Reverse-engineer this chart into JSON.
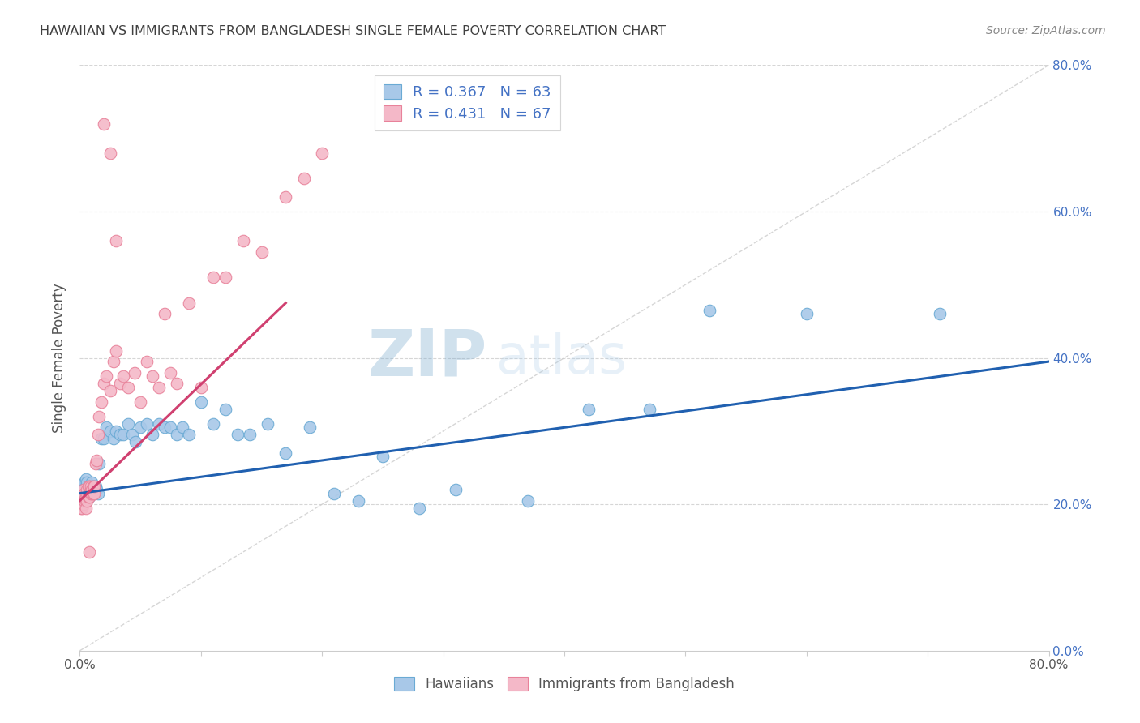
{
  "title": "HAWAIIAN VS IMMIGRANTS FROM BANGLADESH SINGLE FEMALE POVERTY CORRELATION CHART",
  "source": "Source: ZipAtlas.com",
  "ylabel": "Single Female Poverty",
  "legend_label1": "Hawaiians",
  "legend_label2": "Immigrants from Bangladesh",
  "r1": 0.367,
  "n1": 63,
  "r2": 0.431,
  "n2": 67,
  "watermark_zip": "ZIP",
  "watermark_atlas": "atlas",
  "blue_scatter_color": "#a8c8e8",
  "blue_scatter_edge": "#6aaad4",
  "pink_scatter_color": "#f4b8c8",
  "pink_scatter_edge": "#e8829a",
  "blue_line_color": "#2060b0",
  "pink_line_color": "#d04070",
  "axis_label_color": "#4472c4",
  "title_color": "#404040",
  "source_color": "#888888",
  "grid_color": "#cccccc",
  "diagonal_color": "#cccccc",
  "xlim": [
    0.0,
    0.8
  ],
  "ylim": [
    0.0,
    0.8
  ],
  "hawaiians_x": [
    0.002,
    0.003,
    0.004,
    0.004,
    0.005,
    0.005,
    0.005,
    0.006,
    0.006,
    0.007,
    0.007,
    0.008,
    0.008,
    0.009,
    0.009,
    0.01,
    0.01,
    0.011,
    0.011,
    0.012,
    0.013,
    0.014,
    0.015,
    0.016,
    0.018,
    0.02,
    0.022,
    0.025,
    0.028,
    0.03,
    0.033,
    0.036,
    0.04,
    0.043,
    0.046,
    0.05,
    0.055,
    0.06,
    0.065,
    0.07,
    0.075,
    0.08,
    0.085,
    0.09,
    0.1,
    0.11,
    0.12,
    0.13,
    0.14,
    0.155,
    0.17,
    0.19,
    0.21,
    0.23,
    0.25,
    0.28,
    0.31,
    0.37,
    0.42,
    0.47,
    0.52,
    0.6,
    0.71
  ],
  "hawaiians_y": [
    0.225,
    0.22,
    0.215,
    0.23,
    0.21,
    0.225,
    0.235,
    0.22,
    0.23,
    0.215,
    0.225,
    0.21,
    0.22,
    0.215,
    0.225,
    0.22,
    0.23,
    0.215,
    0.225,
    0.22,
    0.225,
    0.22,
    0.215,
    0.255,
    0.29,
    0.29,
    0.305,
    0.3,
    0.29,
    0.3,
    0.295,
    0.295,
    0.31,
    0.295,
    0.285,
    0.305,
    0.31,
    0.295,
    0.31,
    0.305,
    0.305,
    0.295,
    0.305,
    0.295,
    0.34,
    0.31,
    0.33,
    0.295,
    0.295,
    0.31,
    0.27,
    0.305,
    0.215,
    0.205,
    0.265,
    0.195,
    0.22,
    0.205,
    0.33,
    0.33,
    0.465,
    0.46,
    0.46
  ],
  "bangladesh_x": [
    0.001,
    0.001,
    0.002,
    0.002,
    0.002,
    0.003,
    0.003,
    0.003,
    0.004,
    0.004,
    0.004,
    0.005,
    0.005,
    0.005,
    0.005,
    0.006,
    0.006,
    0.006,
    0.007,
    0.007,
    0.007,
    0.008,
    0.008,
    0.008,
    0.009,
    0.009,
    0.009,
    0.01,
    0.01,
    0.011,
    0.011,
    0.012,
    0.012,
    0.013,
    0.014,
    0.015,
    0.016,
    0.018,
    0.02,
    0.022,
    0.025,
    0.028,
    0.03,
    0.033,
    0.036,
    0.04,
    0.045,
    0.05,
    0.055,
    0.06,
    0.065,
    0.07,
    0.075,
    0.08,
    0.09,
    0.1,
    0.11,
    0.12,
    0.135,
    0.15,
    0.17,
    0.185,
    0.2,
    0.02,
    0.025,
    0.03,
    0.008
  ],
  "bangladesh_y": [
    0.2,
    0.195,
    0.205,
    0.215,
    0.195,
    0.21,
    0.2,
    0.22,
    0.215,
    0.205,
    0.215,
    0.205,
    0.195,
    0.21,
    0.215,
    0.215,
    0.22,
    0.205,
    0.215,
    0.21,
    0.225,
    0.215,
    0.225,
    0.21,
    0.22,
    0.215,
    0.225,
    0.215,
    0.22,
    0.215,
    0.225,
    0.215,
    0.225,
    0.255,
    0.26,
    0.295,
    0.32,
    0.34,
    0.365,
    0.375,
    0.355,
    0.395,
    0.41,
    0.365,
    0.375,
    0.36,
    0.38,
    0.34,
    0.395,
    0.375,
    0.36,
    0.46,
    0.38,
    0.365,
    0.475,
    0.36,
    0.51,
    0.51,
    0.56,
    0.545,
    0.62,
    0.645,
    0.68,
    0.72,
    0.68,
    0.56,
    0.135
  ],
  "blue_line_x": [
    0.0,
    0.8
  ],
  "blue_line_y_start": 0.215,
  "blue_line_y_end": 0.395,
  "pink_line_x": [
    0.0,
    0.17
  ],
  "pink_line_y_start": 0.205,
  "pink_line_y_end": 0.475
}
